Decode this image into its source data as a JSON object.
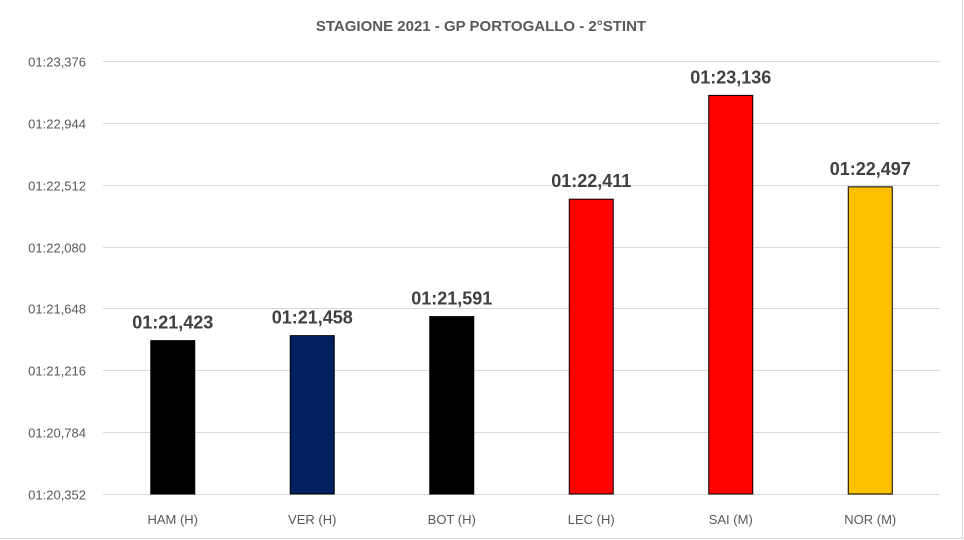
{
  "chart_data": {
    "type": "bar",
    "title": "STAGIONE 2021 - GP PORTOGALLO - 2°STINT",
    "xlabel": "",
    "ylabel": "",
    "categories": [
      "HAM (H)",
      "VER (H)",
      "BOT (H)",
      "LEC (H)",
      "SAI (M)",
      "NOR (M)"
    ],
    "values_seconds": [
      81.423,
      81.458,
      81.591,
      82.411,
      83.136,
      82.497
    ],
    "value_labels": [
      "01:21,423",
      "01:21,458",
      "01:21,591",
      "01:22,411",
      "01:23,136",
      "01:22,497"
    ],
    "bar_colors": [
      "#000000",
      "#002060",
      "#000000",
      "#ff0000",
      "#ff0000",
      "#ffc000"
    ],
    "ylim_seconds": [
      80.352,
      83.376
    ],
    "ytick_values_seconds": [
      80.352,
      80.784,
      81.216,
      81.648,
      82.08,
      82.512,
      82.944,
      83.376
    ],
    "ytick_labels": [
      "01:20,352",
      "01:20,784",
      "01:21,216",
      "01:21,648",
      "01:22,080",
      "01:22,512",
      "01:22,944",
      "01:23,376"
    ],
    "grid": true,
    "legend": "none",
    "gridline_color": "#d9d9d9",
    "text_color": "#595959"
  }
}
